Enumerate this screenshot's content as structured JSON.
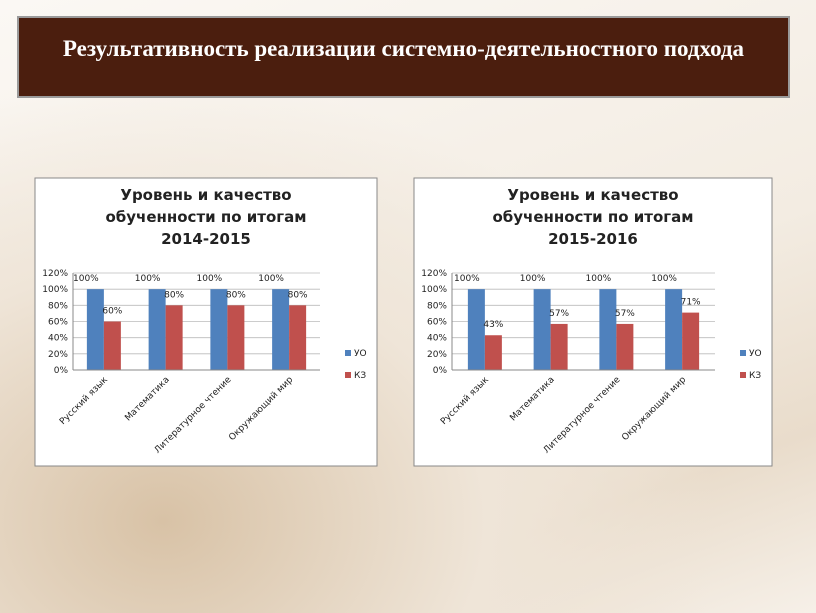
{
  "slide": {
    "title": "Результативность  реализации системно-деятельностного подхода"
  },
  "chart_data": [
    {
      "type": "bar",
      "title": "Уровень и качество обученности по итогам 2014-2015",
      "categories": [
        "Русский язык",
        "Математика",
        "Литературное чтение",
        "Окружающий мир"
      ],
      "series": [
        {
          "name": "УО",
          "color": "#4f81bd",
          "values": [
            100,
            100,
            100,
            100
          ],
          "value_labels": [
            "100%",
            "100%",
            "100%",
            "100%"
          ]
        },
        {
          "name": "КЗ",
          "color": "#c0504d",
          "values": [
            60,
            80,
            80,
            80
          ],
          "value_labels": [
            "60%",
            "80%",
            "80%",
            "80%"
          ]
        }
      ],
      "ylim": [
        0,
        120
      ],
      "yticks": [
        {
          "value": 0,
          "label": "0%"
        },
        {
          "value": 20,
          "label": "20%"
        },
        {
          "value": 40,
          "label": "40%"
        },
        {
          "value": 60,
          "label": "60%"
        },
        {
          "value": 80,
          "label": "80%"
        },
        {
          "value": 100,
          "label": "100%"
        },
        {
          "value": 120,
          "label": "120%"
        }
      ],
      "grid": true,
      "legend": "right"
    },
    {
      "type": "bar",
      "title": "Уровень и качество обученности по итогам 2015-2016",
      "categories": [
        "Русский язык",
        "Математика",
        "Литературное чтение",
        "Окружающий мир"
      ],
      "series": [
        {
          "name": "УО",
          "color": "#4f81bd",
          "values": [
            100,
            100,
            100,
            100
          ],
          "value_labels": [
            "100%",
            "100%",
            "100%",
            "100%"
          ]
        },
        {
          "name": "КЗ",
          "color": "#c0504d",
          "values": [
            43,
            57,
            57,
            71
          ],
          "value_labels": [
            "43%",
            "57%",
            "57%",
            "71%"
          ]
        }
      ],
      "ylim": [
        0,
        120
      ],
      "yticks": [
        {
          "value": 0,
          "label": "0%"
        },
        {
          "value": 20,
          "label": "20%"
        },
        {
          "value": 40,
          "label": "40%"
        },
        {
          "value": 60,
          "label": "60%"
        },
        {
          "value": 80,
          "label": "80%"
        },
        {
          "value": 100,
          "label": "100%"
        },
        {
          "value": 120,
          "label": "120%"
        }
      ],
      "grid": true,
      "legend": "right"
    }
  ]
}
